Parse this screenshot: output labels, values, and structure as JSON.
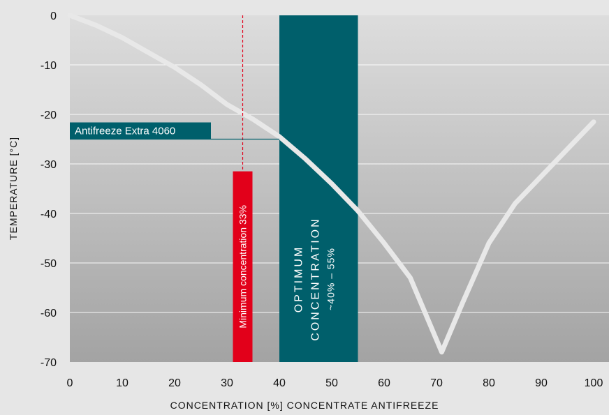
{
  "chart_data": {
    "type": "line",
    "xlabel": "CONCENTRATION [%] CONCENTRATE ANTIFREEZE",
    "ylabel": "TEMPERATURE [°C]",
    "xlim": [
      0,
      100
    ],
    "ylim": [
      -70,
      0
    ],
    "x_ticks": [
      0,
      10,
      20,
      30,
      40,
      50,
      60,
      70,
      80,
      90,
      100
    ],
    "y_ticks": [
      0,
      -10,
      -20,
      -30,
      -40,
      -50,
      -60,
      -70
    ],
    "grid": "horizontal",
    "series": [
      {
        "x": [
          0,
          5,
          10,
          15,
          20,
          25,
          30,
          35,
          40,
          45,
          50,
          55,
          60,
          65,
          71,
          75,
          80,
          85,
          90,
          95,
          100
        ],
        "y": [
          0,
          -2,
          -4.5,
          -7.5,
          -10.5,
          -14,
          -18,
          -21,
          -24.5,
          -29,
          -34,
          -39.5,
          -46,
          -53,
          -68,
          -58,
          -46,
          -38,
          -32.5,
          -27,
          -21.5
        ]
      }
    ],
    "colors": {
      "curve": "#e8e8e8",
      "optimum_band": "#005f6b",
      "minimum_marker": "#e2001a",
      "gradient_top": "#dddddd",
      "gradient_bottom": "#a3a3a3"
    },
    "annotations": {
      "optimum": {
        "x_range": [
          40,
          55
        ],
        "line1": "OPTIMUM",
        "line2": "CONCENTRATION",
        "line3": "~40% – 55%"
      },
      "minimum": {
        "x": 33,
        "label": "Minimum concentration 33%",
        "y_range": [
          -70,
          -31.5
        ]
      },
      "product": {
        "label": "Antifreeze Extra 4060",
        "x": 40,
        "y": -25
      }
    }
  }
}
